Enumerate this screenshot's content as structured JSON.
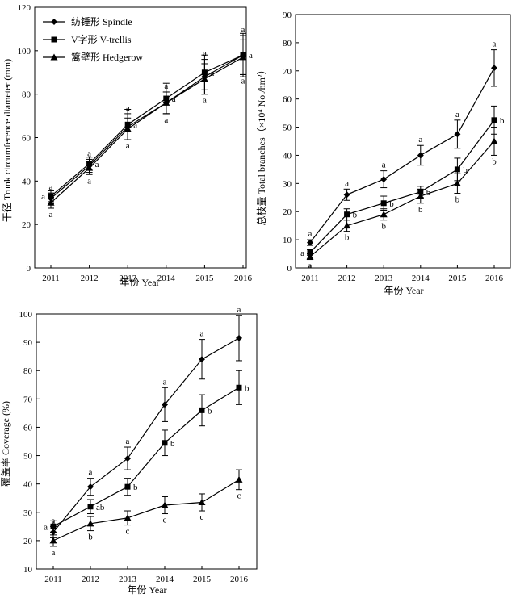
{
  "chart_data": [
    {
      "type": "line",
      "id": "trunk",
      "title": "",
      "xlabel": "年份 Year",
      "ylabel": "干径 Trunk circumference diameter (mm)",
      "categories": [
        "2011",
        "2012",
        "2013",
        "2014",
        "2015",
        "2016"
      ],
      "ylim": [
        0,
        120
      ],
      "yticks": [
        0,
        20,
        40,
        60,
        80,
        100,
        120
      ],
      "grid": false,
      "legend_position": "top-left",
      "series": [
        {
          "name": "纺锤形 Spindle",
          "marker": "diamond",
          "values": [
            32,
            47,
            65,
            76,
            88,
            98
          ],
          "errors": [
            2.5,
            3,
            6,
            5,
            8,
            9
          ],
          "letters": [
            "a",
            "a",
            "a",
            "a",
            "a",
            "a"
          ]
        },
        {
          "name": "V字形 V-trellis",
          "marker": "square",
          "values": [
            33,
            48,
            66,
            78,
            90,
            98
          ],
          "errors": [
            2.5,
            3,
            7,
            7,
            8,
            10
          ],
          "letters": [
            "a",
            "a",
            "a",
            "a",
            "a",
            "a"
          ]
        },
        {
          "name": "篱壁形 Hedgerow",
          "marker": "triangle",
          "values": [
            30,
            46,
            64,
            76,
            87,
            97
          ],
          "errors": [
            2.5,
            3,
            5,
            5,
            7,
            8
          ],
          "letters": [
            "a",
            "a",
            "a",
            "a",
            "a",
            "a"
          ]
        }
      ]
    },
    {
      "type": "line",
      "id": "branches",
      "title": "",
      "xlabel": "年份 Year",
      "ylabel": "总枝量 Total branches（×10⁴ No./hm²）",
      "categories": [
        "2011",
        "2012",
        "2013",
        "2014",
        "2015",
        "2016"
      ],
      "ylim": [
        0,
        90
      ],
      "yticks": [
        0,
        10,
        20,
        30,
        40,
        50,
        60,
        70,
        80,
        90
      ],
      "grid": false,
      "series": [
        {
          "name": "纺锤形 Spindle",
          "marker": "diamond",
          "values": [
            9,
            26,
            31.5,
            40,
            47.5,
            71
          ],
          "errors": [
            1,
            2,
            3,
            3.5,
            5,
            6.5
          ],
          "letters": [
            "a",
            "a",
            "a",
            "a",
            "a",
            "a"
          ]
        },
        {
          "name": "V字形 V-trellis",
          "marker": "square",
          "values": [
            5.5,
            19,
            23,
            27,
            35,
            52.5
          ],
          "errors": [
            1,
            2,
            2.5,
            2,
            4,
            5
          ],
          "letters": [
            "a",
            "b",
            "b",
            "b",
            "b",
            "b"
          ]
        },
        {
          "name": "篱壁形 Hedgerow",
          "marker": "triangle",
          "values": [
            4,
            15,
            19,
            25.5,
            30,
            45
          ],
          "errors": [
            1,
            2,
            2,
            2.5,
            3.5,
            5
          ],
          "letters": [
            "a",
            "b",
            "b",
            "b",
            "b",
            "b"
          ]
        }
      ]
    },
    {
      "type": "line",
      "id": "coverage",
      "title": "",
      "xlabel": "年份 Year",
      "ylabel": "覆盖率 Coverage (%)",
      "categories": [
        "2011",
        "2012",
        "2013",
        "2014",
        "2015",
        "2016"
      ],
      "ylim": [
        10,
        100
      ],
      "yticks": [
        10,
        20,
        30,
        40,
        50,
        60,
        70,
        80,
        90,
        100
      ],
      "grid": false,
      "series": [
        {
          "name": "纺锤形 Spindle",
          "marker": "diamond",
          "values": [
            23,
            39,
            49,
            68,
            84,
            91.5
          ],
          "errors": [
            2,
            3,
            4,
            6,
            7,
            8
          ],
          "letters": [
            "a",
            "a",
            "a",
            "a",
            "a",
            "a"
          ]
        },
        {
          "name": "V字形 V-trellis",
          "marker": "square",
          "values": [
            25,
            32,
            39,
            54.5,
            66,
            74
          ],
          "errors": [
            2,
            2.5,
            3,
            4.5,
            5.5,
            6
          ],
          "letters": [
            "a",
            "ab",
            "b",
            "b",
            "b",
            "b"
          ]
        },
        {
          "name": "篱壁形 Hedgerow",
          "marker": "triangle",
          "values": [
            20,
            26,
            28,
            32.5,
            33.5,
            41.5
          ],
          "errors": [
            2,
            2.5,
            2.5,
            3,
            3,
            3.5
          ],
          "letters": [
            "a",
            "b",
            "c",
            "c",
            "c",
            "c"
          ]
        }
      ]
    }
  ]
}
